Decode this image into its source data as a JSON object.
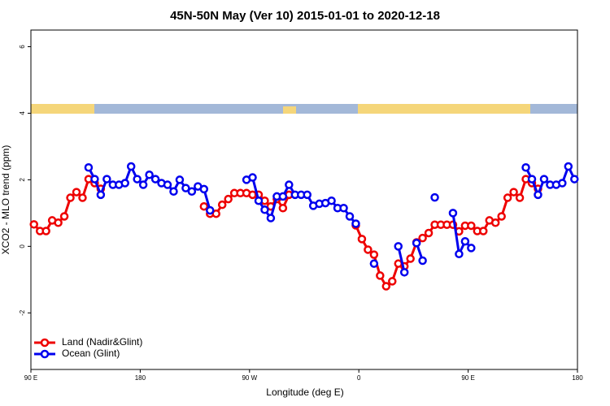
{
  "chart_data": {
    "type": "line",
    "title": "45N-50N May (Ver 10)   2015-01-01 to 2020-12-18",
    "xlabel": "Longitude (deg E)",
    "ylabel": "XCO2 - MLO trend (ppm)",
    "xlim": [
      90,
      540
    ],
    "ylim": [
      -3.7,
      6.5
    ],
    "xticks": [
      {
        "value": 90,
        "label": "90 E"
      },
      180,
      {
        "value": 270,
        "label": "90 W"
      },
      {
        "value": 360,
        "label": "0"
      },
      {
        "value": 450,
        "label": "90 E"
      },
      {
        "value": 540,
        "label": "180"
      }
    ],
    "yticks": [
      -2,
      0,
      2,
      4,
      6
    ],
    "legend": "bottom-left",
    "x": [
      92.5,
      97.5,
      102.5,
      107.5,
      112.5,
      117.5,
      122.5,
      127.5,
      132.5,
      137.5,
      142.5,
      147.5,
      152.5,
      157.5,
      162.5,
      167.5,
      172.5,
      177.5,
      182.5,
      187.5,
      192.5,
      197.5,
      202.5,
      207.5,
      212.5,
      217.5,
      222.5,
      227.5,
      232.5,
      237.5,
      242.5,
      247.5,
      252.5,
      257.5,
      262.5,
      267.5,
      272.5,
      277.5,
      282.5,
      287.5,
      292.5,
      297.5,
      302.5,
      307.5,
      312.5,
      317.5,
      322.5,
      327.5,
      332.5,
      337.5,
      342.5,
      347.5,
      352.5,
      357.5,
      362.5,
      367.5,
      372.5,
      377.5,
      382.5,
      387.5,
      392.5,
      397.5,
      402.5,
      407.5,
      412.5,
      417.5,
      422.5,
      427.5,
      432.5,
      437.5,
      442.5,
      447.5,
      452.5,
      457.5,
      462.5,
      467.5,
      472.5,
      477.5,
      482.5,
      487.5,
      492.5,
      497.5,
      502.5,
      507.5,
      512.5,
      517.5,
      522.5,
      527.5,
      532.5,
      537.5
    ],
    "series": [
      {
        "name": "Land (Nadir&Glint)",
        "color": "#ee0000",
        "values": [
          0.66,
          0.46,
          0.46,
          0.78,
          0.71,
          0.9,
          1.46,
          1.63,
          1.46,
          2.02,
          1.9,
          1.73,
          null,
          null,
          null,
          null,
          null,
          null,
          null,
          null,
          null,
          null,
          null,
          null,
          null,
          null,
          null,
          null,
          1.2,
          0.98,
          0.98,
          1.25,
          1.42,
          1.6,
          1.6,
          1.6,
          1.55,
          1.55,
          1.37,
          1.2,
          1.42,
          1.15,
          1.55,
          null,
          null,
          null,
          null,
          null,
          null,
          null,
          null,
          null,
          null,
          0.63,
          0.22,
          -0.1,
          -0.25,
          -0.88,
          -1.2,
          -1.05,
          -0.52,
          -0.6,
          -0.37,
          0.12,
          0.25,
          0.4,
          0.65,
          0.65,
          0.65,
          0.65,
          0.45,
          0.62,
          0.62,
          0.46,
          0.46,
          0.78,
          0.71,
          0.9,
          1.46,
          1.63,
          1.46,
          2.02,
          1.9,
          1.73,
          null,
          null,
          null,
          null,
          null,
          null
        ]
      },
      {
        "name": "Ocean (Glint)",
        "color": "#0000ee",
        "values": [
          null,
          null,
          null,
          null,
          null,
          null,
          null,
          null,
          null,
          2.37,
          2.02,
          1.55,
          2.02,
          1.85,
          1.85,
          1.9,
          2.4,
          2.02,
          1.85,
          2.15,
          2.02,
          1.9,
          1.85,
          1.65,
          2.0,
          1.75,
          1.65,
          1.8,
          1.72,
          1.08,
          null,
          null,
          null,
          null,
          null,
          2.0,
          2.07,
          1.37,
          1.1,
          0.85,
          1.5,
          1.5,
          1.85,
          1.55,
          1.55,
          1.55,
          1.22,
          1.28,
          1.3,
          1.37,
          1.15,
          1.15,
          0.9,
          0.68,
          null,
          null,
          -0.52,
          null,
          null,
          null,
          0.0,
          -0.78,
          null,
          0.1,
          -0.43,
          null,
          1.47,
          null,
          null,
          1.0,
          -0.23,
          0.15,
          -0.05,
          null,
          null,
          null,
          null,
          null,
          null,
          null,
          null,
          2.37,
          2.02,
          1.55,
          2.02,
          1.85,
          1.85,
          1.9,
          2.4,
          2.02
        ]
      }
    ]
  }
}
